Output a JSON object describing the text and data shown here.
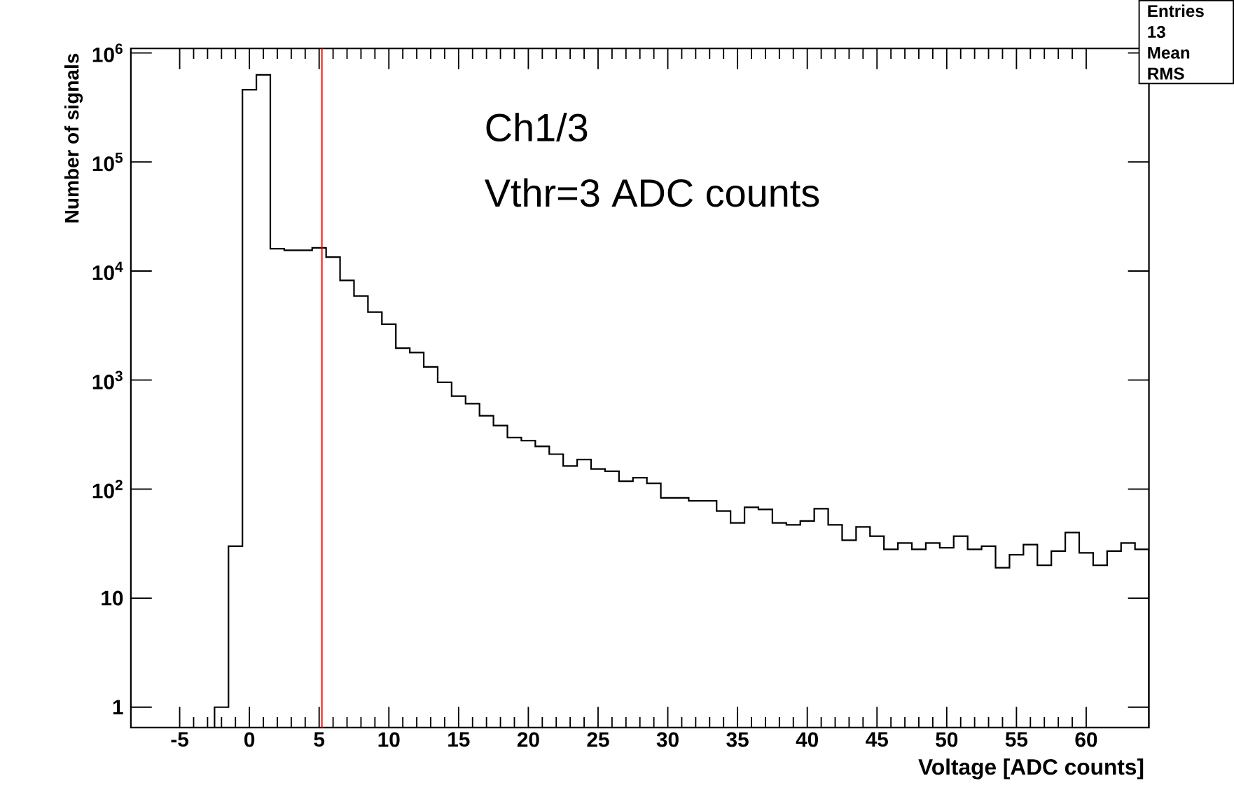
{
  "chart_data": {
    "type": "histogram",
    "xlabel": "Voltage [ADC counts]",
    "ylabel": "Number of signals",
    "bins": [
      -2.5,
      -1.5,
      -0.5,
      0.5,
      1.5,
      2.5,
      3.5,
      4.5,
      5.5,
      6.5,
      7.5,
      8.5,
      9.5,
      10.5,
      11.5,
      12.5,
      13.5,
      14.5,
      15.5,
      16.5,
      17.5,
      18.5,
      19.5,
      20.5,
      21.5,
      22.5,
      23.5,
      24.5,
      25.5,
      26.5,
      27.5,
      28.5,
      29.5,
      30.5,
      31.5,
      32.5,
      33.5,
      34.5,
      35.5,
      36.5,
      37.5,
      38.5,
      39.5,
      40.5,
      41.5,
      42.5,
      43.5,
      44.5,
      45.5,
      46.5,
      47.5,
      48.5,
      49.5,
      50.5,
      51.5,
      52.5,
      53.5,
      54.5,
      55.5,
      56.5,
      57.5,
      58.5,
      59.5,
      60.5,
      61.5,
      62.5,
      63.5,
      64.5
    ],
    "values": [
      1,
      30,
      460000,
      630000,
      16000,
      15500,
      15500,
      16300,
      13400,
      8200,
      5900,
      4200,
      3250,
      1960,
      1790,
      1320,
      955,
      713,
      608,
      470,
      383,
      297,
      278,
      246,
      209,
      163,
      187,
      153,
      146,
      118,
      127,
      113,
      83,
      83,
      78,
      78,
      63,
      49,
      68,
      65,
      49,
      47,
      51,
      66,
      47,
      34,
      45,
      37,
      28,
      32,
      28,
      32,
      29,
      37,
      28,
      30,
      19,
      25,
      31,
      20,
      27,
      40,
      26,
      20,
      27,
      32,
      28
    ],
    "color": "#000000",
    "log": "y",
    "xlim": [
      -8.5,
      64.5
    ],
    "ylim": [
      0.65,
      1100000
    ],
    "xticks": [
      -5,
      0,
      5,
      10,
      15,
      20,
      25,
      30,
      35,
      40,
      45,
      50,
      55,
      60
    ],
    "yticks": [
      1,
      10,
      {
        "value": 100,
        "label": "10$^{2}$"
      },
      {
        "value": 1000,
        "label": "10$^{3}$"
      },
      {
        "value": 10000,
        "label": "10$^{4}$"
      },
      {
        "value": 100000,
        "label": "10$^{5}$"
      },
      {
        "value": 1000000,
        "label": "10$^{6}$"
      }
    ],
    "grid": false,
    "ref_lines": [
      {
        "axis": "x",
        "value": 5.2,
        "color": "#ff0000"
      }
    ],
    "annotations": [
      "Ch1/3",
      "Vthr=3 ADC counts",
      "Entries  13",
      "Mean",
      "RMS"
    ]
  }
}
